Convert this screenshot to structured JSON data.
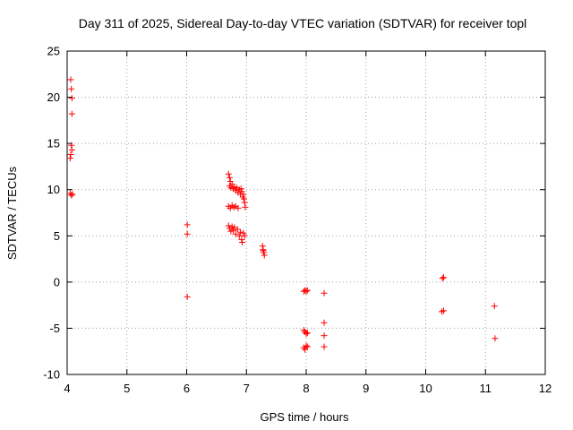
{
  "chart_data": {
    "type": "scatter",
    "title": "Day 311 of 2025, Sidereal Day-to-day VTEC variation (SDTVAR) for receiver topl",
    "xlabel": "GPS time / hours",
    "ylabel": "SDTVAR / TECUs",
    "xlim": [
      4,
      12
    ],
    "ylim": [
      -10,
      25
    ],
    "xticks": [
      "4",
      "5",
      "6",
      "7",
      "8",
      "9",
      "10",
      "11",
      "12"
    ],
    "yticks": [
      "-10",
      "-5",
      "0",
      "5",
      "10",
      "15",
      "20",
      "25"
    ],
    "grid": true,
    "marker": "+",
    "color": "#ff0000",
    "series": [
      {
        "name": "SDTVAR",
        "points": [
          [
            4.06,
            21.9
          ],
          [
            4.07,
            20.9
          ],
          [
            4.08,
            19.9
          ],
          [
            4.08,
            18.2
          ],
          [
            4.07,
            14.8
          ],
          [
            4.08,
            14.3
          ],
          [
            4.06,
            13.8
          ],
          [
            4.05,
            13.4
          ],
          [
            4.05,
            9.6
          ],
          [
            4.07,
            9.4
          ],
          [
            4.09,
            9.5
          ],
          [
            6.01,
            6.2
          ],
          [
            6.01,
            5.2
          ],
          [
            6.01,
            -1.6
          ],
          [
            6.7,
            11.7
          ],
          [
            6.72,
            11.3
          ],
          [
            6.73,
            10.9
          ],
          [
            6.72,
            10.4
          ],
          [
            6.74,
            10.2
          ],
          [
            6.76,
            10.6
          ],
          [
            6.78,
            10.1
          ],
          [
            6.8,
            10.3
          ],
          [
            6.82,
            9.9
          ],
          [
            6.84,
            10.2
          ],
          [
            6.86,
            9.7
          ],
          [
            6.88,
            10.0
          ],
          [
            6.9,
            9.5
          ],
          [
            6.92,
            9.8
          ],
          [
            6.94,
            9.2
          ],
          [
            6.96,
            9.0
          ],
          [
            6.97,
            8.6
          ],
          [
            6.98,
            8.1
          ],
          [
            6.95,
            9.5
          ],
          [
            6.91,
            10.1
          ],
          [
            6.7,
            8.2
          ],
          [
            6.73,
            8.0
          ],
          [
            6.76,
            8.3
          ],
          [
            6.79,
            8.1
          ],
          [
            6.82,
            8.2
          ],
          [
            6.86,
            8.0
          ],
          [
            6.7,
            6.1
          ],
          [
            6.72,
            5.8
          ],
          [
            6.74,
            5.5
          ],
          [
            6.76,
            6.0
          ],
          [
            6.78,
            5.6
          ],
          [
            6.8,
            5.9
          ],
          [
            6.82,
            5.2
          ],
          [
            6.85,
            5.7
          ],
          [
            6.88,
            5.0
          ],
          [
            6.9,
            5.4
          ],
          [
            6.92,
            4.6
          ],
          [
            6.93,
            4.3
          ],
          [
            6.95,
            5.3
          ],
          [
            6.97,
            5.0
          ],
          [
            7.27,
            3.9
          ],
          [
            7.28,
            3.5
          ],
          [
            7.29,
            3.2
          ],
          [
            7.3,
            2.9
          ],
          [
            7.28,
            3.4
          ],
          [
            7.96,
            -1.0
          ],
          [
            7.98,
            -0.9
          ],
          [
            8.0,
            -1.0
          ],
          [
            8.02,
            -0.9
          ],
          [
            8.3,
            -1.2
          ],
          [
            7.96,
            -5.2
          ],
          [
            7.98,
            -5.4
          ],
          [
            8.0,
            -5.6
          ],
          [
            8.02,
            -5.5
          ],
          [
            8.3,
            -4.4
          ],
          [
            8.3,
            -5.8
          ],
          [
            7.96,
            -7.1
          ],
          [
            7.98,
            -7.3
          ],
          [
            8.0,
            -6.9
          ],
          [
            8.02,
            -7.0
          ],
          [
            8.3,
            -7.0
          ],
          [
            10.28,
            0.4
          ],
          [
            10.3,
            0.5
          ],
          [
            10.27,
            -3.2
          ],
          [
            10.3,
            -3.1
          ],
          [
            11.15,
            -2.6
          ],
          [
            11.16,
            -6.1
          ]
        ]
      }
    ]
  }
}
